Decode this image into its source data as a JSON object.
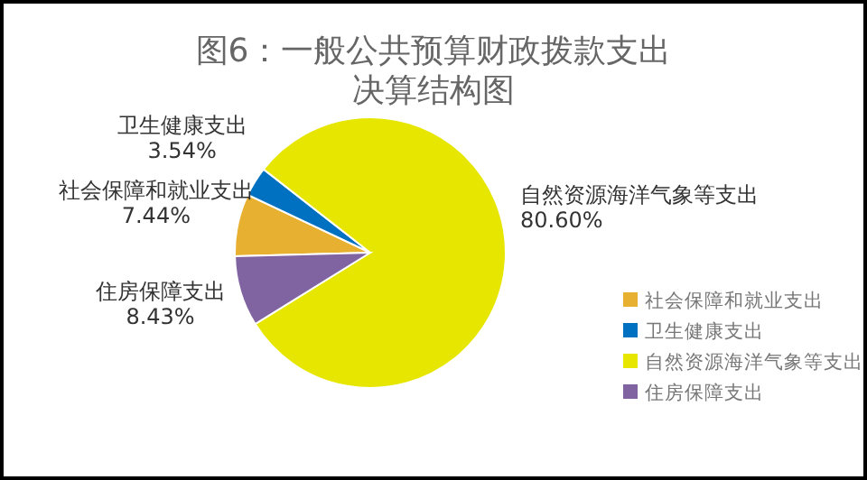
{
  "chart_data": {
    "type": "pie",
    "title": "图6：一般公共预算财政拨款支出决算结构图",
    "categories": [
      "社会保障和就业支出",
      "卫生健康支出",
      "自然资源海洋气象等支出",
      "住房保障支出"
    ],
    "values": [
      7.44,
      3.54,
      80.6,
      8.43
    ],
    "value_labels": [
      "7.44%",
      "3.54%",
      "80.60%",
      "8.43%"
    ],
    "colors": [
      "#e8b030",
      "#0070c0",
      "#e6e600",
      "#8064a2"
    ],
    "legend": "right"
  }
}
